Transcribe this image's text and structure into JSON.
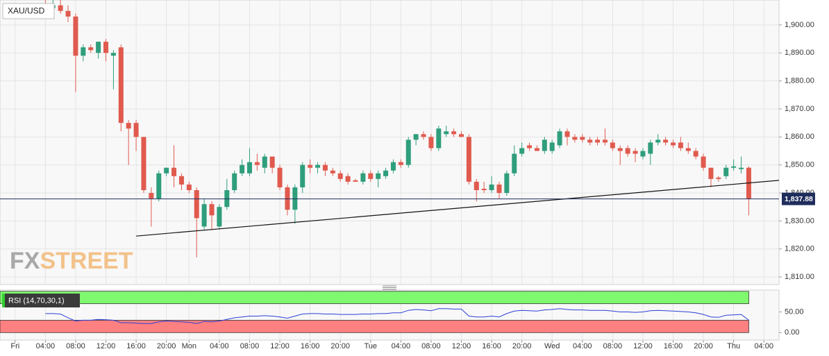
{
  "chart_data": [
    {
      "type": "candlestick",
      "title": "XAU/USD",
      "watermark": [
        "FX",
        "STREET"
      ],
      "x": [
        4,
        5,
        6,
        7,
        8,
        9,
        10,
        11,
        12,
        13,
        14,
        15,
        16,
        17,
        18,
        19,
        20,
        21,
        22,
        23,
        24,
        25,
        26,
        27,
        28,
        29,
        30,
        31,
        32,
        33,
        34,
        35,
        36,
        37,
        38,
        39,
        40,
        41,
        42,
        43,
        44,
        45,
        46,
        47,
        48,
        49,
        50,
        51,
        52,
        53,
        54,
        55,
        56,
        57,
        58,
        59,
        60,
        61,
        62,
        63,
        64,
        65,
        66,
        67,
        68,
        69,
        70,
        71,
        72,
        73,
        74,
        75,
        76,
        77,
        78,
        79,
        80,
        81,
        82,
        83,
        84,
        85,
        86,
        87,
        88,
        89,
        90,
        91,
        92,
        93,
        94,
        95,
        96,
        97
      ],
      "open": [
        1907,
        1906,
        1907,
        1905,
        1903,
        1889,
        1892,
        1890,
        1894,
        1889,
        1892,
        1865,
        1865,
        1860,
        1840,
        1838,
        1847,
        1849,
        1846,
        1843,
        1841,
        1828,
        1836,
        1828,
        1835,
        1841,
        1847,
        1847,
        1851,
        1849,
        1853,
        1849,
        1842,
        1834,
        1842,
        1850,
        1849,
        1850,
        1848,
        1847,
        1846,
        1844.5,
        1844,
        1847,
        1845,
        1846,
        1848,
        1851,
        1850,
        1859,
        1861,
        1860,
        1856,
        1861,
        1862,
        1861,
        1860,
        1844,
        1841.5,
        1841,
        1843,
        1840,
        1847,
        1854,
        1857,
        1856,
        1855,
        1855,
        1857,
        1862,
        1860,
        1860,
        1859,
        1859,
        1859,
        1858,
        1856,
        1856,
        1855,
        1853,
        1854,
        1858,
        1859,
        1858,
        1858,
        1856,
        1855,
        1853,
        1849,
        1845.5,
        1846,
        1849,
        1848.5,
        1849
      ],
      "high": [
        1910,
        1909,
        1909,
        1907,
        1904,
        1893,
        1893,
        1894,
        1895,
        1891,
        1893,
        1866,
        1866,
        1860,
        1842,
        1848,
        1849,
        1857,
        1847,
        1844,
        1842,
        1838,
        1837,
        1836,
        1845,
        1848,
        1852,
        1856,
        1854,
        1854,
        1853,
        1850,
        1843,
        1843,
        1851,
        1852,
        1851,
        1851,
        1849,
        1848,
        1847,
        1845,
        1848,
        1848,
        1848,
        1849,
        1852,
        1852,
        1860,
        1861,
        1862,
        1861,
        1864,
        1864,
        1863,
        1862,
        1861,
        1845,
        1844,
        1846,
        1844,
        1848,
        1857,
        1858,
        1858,
        1857,
        1860,
        1859,
        1863,
        1863,
        1861,
        1861,
        1860,
        1860,
        1863,
        1859,
        1857,
        1857,
        1856,
        1856,
        1859,
        1861,
        1860,
        1859,
        1860,
        1858,
        1856,
        1854,
        1849,
        1846,
        1850,
        1852,
        1853,
        1849.5
      ],
      "low": [
        1905,
        1904,
        1904,
        1901,
        1876,
        1887,
        1890,
        1888,
        1887,
        1877,
        1862,
        1850,
        1855,
        1840,
        1828,
        1837,
        1846,
        1842,
        1841,
        1840,
        1817,
        1827,
        1827,
        1827,
        1834,
        1840,
        1846,
        1846,
        1848,
        1847,
        1847,
        1841,
        1832,
        1829,
        1840,
        1847,
        1847,
        1846,
        1846,
        1844,
        1843,
        1844,
        1843,
        1844,
        1842,
        1845,
        1847,
        1849,
        1849,
        1857,
        1859,
        1855,
        1855,
        1860,
        1860,
        1860,
        1843,
        1837,
        1840,
        1840,
        1838,
        1839,
        1846,
        1853,
        1855,
        1855,
        1854,
        1854,
        1856,
        1857,
        1858,
        1858,
        1857,
        1857,
        1857,
        1855,
        1850,
        1853,
        1851,
        1852,
        1850,
        1857,
        1857,
        1856,
        1855,
        1854,
        1852,
        1848,
        1842,
        1844,
        1845,
        1848,
        1847,
        1832
      ],
      "close": [
        1906,
        1907,
        1905,
        1903,
        1889,
        1892,
        1891,
        1894,
        1890,
        1890,
        1865,
        1863,
        1860,
        1841,
        1838,
        1847,
        1849,
        1846,
        1843,
        1841,
        1831,
        1836,
        1832,
        1835,
        1841,
        1847,
        1850,
        1851,
        1850,
        1853,
        1849,
        1842,
        1834,
        1842,
        1850,
        1849,
        1850,
        1848,
        1847,
        1845,
        1844,
        1844,
        1847,
        1845,
        1847,
        1848,
        1851,
        1850,
        1859,
        1861,
        1860,
        1856,
        1863,
        1862,
        1861,
        1860,
        1844,
        1841,
        1841,
        1843,
        1840,
        1847,
        1854,
        1856,
        1856,
        1855,
        1859,
        1858,
        1862,
        1860,
        1859,
        1859,
        1858,
        1858,
        1858,
        1856,
        1855,
        1854,
        1854,
        1855,
        1858,
        1859,
        1858,
        1857,
        1856,
        1855,
        1853,
        1849,
        1845,
        1845,
        1849,
        1849.5,
        1849,
        1837.88
      ],
      "up_color": "#2f9e7c",
      "down_color": "#e05a4e",
      "trendline": {
        "x": [
          16,
          101
        ],
        "y": [
          1824.6,
          1844.5
        ],
        "color": "#111111"
      },
      "last": 1837.88,
      "last_label": "1,837.88",
      "last_color": "#1f2d5c",
      "xlim": [
        -2,
        101
      ],
      "ylim": [
        1807.3,
        1908.9
      ],
      "yticks": [
        {
          "value": 1810,
          "label": "1,810.00"
        },
        {
          "value": 1820,
          "label": "1,820.00"
        },
        {
          "value": 1830,
          "label": "1,830.00"
        },
        {
          "value": 1840,
          "label": "1,840.00"
        },
        {
          "value": 1850,
          "label": "1,850.00"
        },
        {
          "value": 1860,
          "label": "1,860.00"
        },
        {
          "value": 1870,
          "label": "1,870.00"
        },
        {
          "value": 1880,
          "label": "1,880.00"
        },
        {
          "value": 1890,
          "label": "1,890.00"
        },
        {
          "value": 1900,
          "label": "1,900.00"
        }
      ],
      "xticks": [
        {
          "value": 0,
          "label": "Fri"
        },
        {
          "value": 4,
          "label": "04:00"
        },
        {
          "value": 8,
          "label": "08:00"
        },
        {
          "value": 12,
          "label": "12:00"
        },
        {
          "value": 16,
          "label": "16:00"
        },
        {
          "value": 20,
          "label": "20:00"
        },
        {
          "value": 23,
          "label": "Mon"
        },
        {
          "value": 27,
          "label": "04:00"
        },
        {
          "value": 31,
          "label": "08:00"
        },
        {
          "value": 35,
          "label": "12:00"
        },
        {
          "value": 39,
          "label": "16:00"
        },
        {
          "value": 43,
          "label": "20:00"
        },
        {
          "value": 47,
          "label": "Tue"
        },
        {
          "value": 51,
          "label": "04:00"
        },
        {
          "value": 55,
          "label": "08:00"
        },
        {
          "value": 59,
          "label": "12:00"
        },
        {
          "value": 63,
          "label": "16:00"
        },
        {
          "value": 67,
          "label": "20:00"
        },
        {
          "value": 71,
          "label": "Wed"
        },
        {
          "value": 75,
          "label": "04:00"
        },
        {
          "value": 79,
          "label": "08:00"
        },
        {
          "value": 83,
          "label": "12:00"
        },
        {
          "value": 87,
          "label": "16:00"
        },
        {
          "value": 91,
          "label": "20:00"
        },
        {
          "value": 95,
          "label": "Thu"
        },
        {
          "value": 99,
          "label": "04:00"
        }
      ],
      "grid": true
    },
    {
      "type": "line",
      "title": "RSI (14,70,30,1)",
      "x": [
        4,
        5,
        6,
        7,
        8,
        9,
        10,
        11,
        12,
        13,
        14,
        15,
        16,
        17,
        18,
        19,
        20,
        21,
        22,
        23,
        24,
        25,
        26,
        27,
        28,
        29,
        30,
        31,
        32,
        33,
        34,
        35,
        36,
        37,
        38,
        39,
        40,
        41,
        42,
        43,
        44,
        45,
        46,
        47,
        48,
        49,
        50,
        51,
        52,
        53,
        54,
        55,
        56,
        57,
        58,
        59,
        60,
        61,
        62,
        63,
        64,
        65,
        66,
        67,
        68,
        69,
        70,
        71,
        72,
        73,
        74,
        75,
        76,
        77,
        78,
        79,
        80,
        81,
        82,
        83,
        84,
        85,
        86,
        87,
        88,
        89,
        90,
        91,
        92,
        93,
        94,
        95,
        96,
        97
      ],
      "values": [
        46,
        46,
        45,
        36,
        28,
        30,
        30,
        32,
        31,
        30,
        24,
        24,
        23,
        22,
        22,
        26,
        28,
        27,
        26,
        25,
        22,
        27,
        26,
        28,
        32,
        36,
        38,
        40,
        40,
        41,
        40,
        38,
        35,
        40,
        45,
        46,
        46,
        45,
        45,
        44,
        44,
        44,
        45,
        45,
        46,
        46,
        48,
        48,
        54,
        56,
        55,
        53,
        58,
        58,
        57,
        57,
        40,
        38,
        38,
        40,
        38,
        46,
        52,
        54,
        53,
        52,
        55,
        56,
        58,
        56,
        55,
        55,
        54,
        54,
        54,
        52,
        50,
        50,
        49,
        50,
        53,
        54,
        53,
        52,
        51,
        50,
        48,
        44,
        38,
        37,
        42,
        43,
        44,
        30
      ],
      "color": "#2a3fd6",
      "bands": [
        {
          "from": 70,
          "to": 100,
          "color": "#80f870"
        },
        {
          "from": 0,
          "to": 30,
          "color": "#ff8080"
        }
      ],
      "ylim": [
        -18,
        103
      ],
      "yticks": [
        {
          "value": 50,
          "label": "50.00"
        },
        {
          "value": 0,
          "label": "0.00"
        }
      ]
    }
  ]
}
